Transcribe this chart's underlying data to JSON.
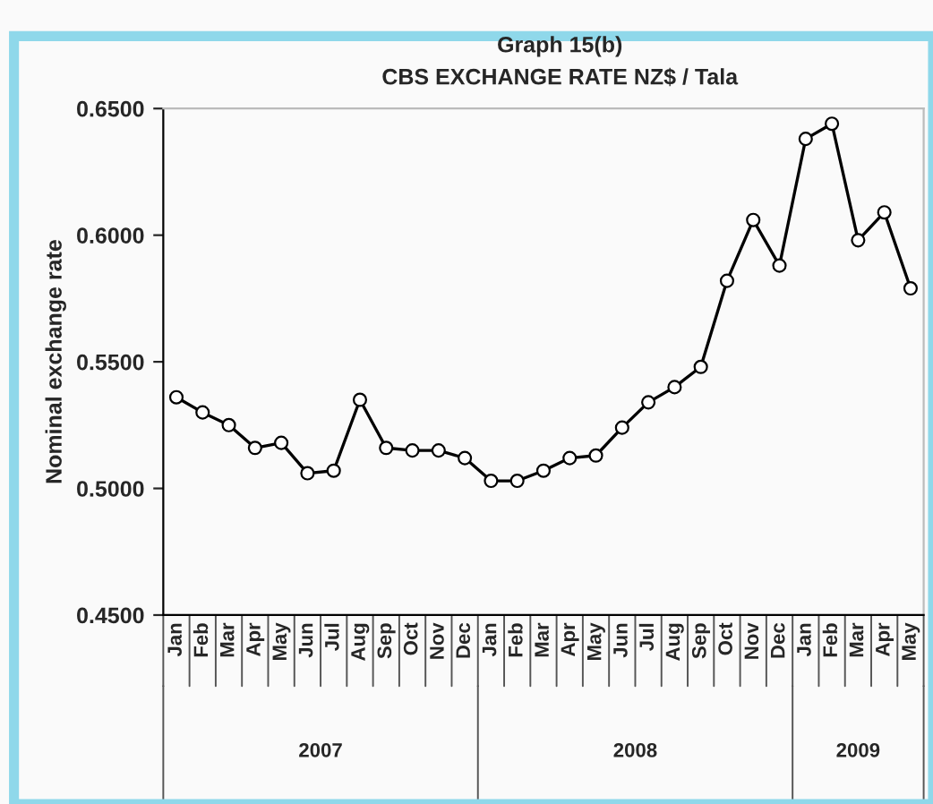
{
  "chart_data": {
    "type": "line",
    "title": "Graph 15(b)",
    "subtitle": "CBS EXCHANGE RATE NZ$ / Tala",
    "ylabel": "Nominal exchange rate",
    "categories": [
      "Jan",
      "Feb",
      "Mar",
      "Apr",
      "May",
      "Jun",
      "Jul",
      "Aug",
      "Sep",
      "Oct",
      "Nov",
      "Dec",
      "Jan",
      "Feb",
      "Mar",
      "Apr",
      "May",
      "Jun",
      "Jul",
      "Aug",
      "Sep",
      "Oct",
      "Nov",
      "Dec",
      "Jan",
      "Feb",
      "Mar",
      "Apr",
      "May"
    ],
    "series": [
      {
        "color": "#000000",
        "values": [
          0.536,
          0.53,
          0.525,
          0.516,
          0.518,
          0.506,
          0.507,
          0.535,
          0.516,
          0.515,
          0.515,
          0.512,
          0.503,
          0.503,
          0.507,
          0.512,
          0.513,
          0.524,
          0.534,
          0.54,
          0.548,
          0.582,
          0.606,
          0.588,
          0.638,
          0.644,
          0.598,
          0.609,
          0.579
        ]
      }
    ],
    "ylim": [
      0.45,
      0.65
    ],
    "yticks": [
      {
        "value": 0.45,
        "label": "0.4500"
      },
      {
        "value": 0.5,
        "label": "0.5000"
      },
      {
        "value": 0.55,
        "label": "0.5500"
      },
      {
        "value": 0.6,
        "label": "0.6000"
      },
      {
        "value": 0.65,
        "label": "0.6500"
      }
    ],
    "annotations": [
      "2007",
      "2008",
      "2009"
    ],
    "marker": "circle",
    "line_style": "solid",
    "grid": false,
    "legend": false
  }
}
